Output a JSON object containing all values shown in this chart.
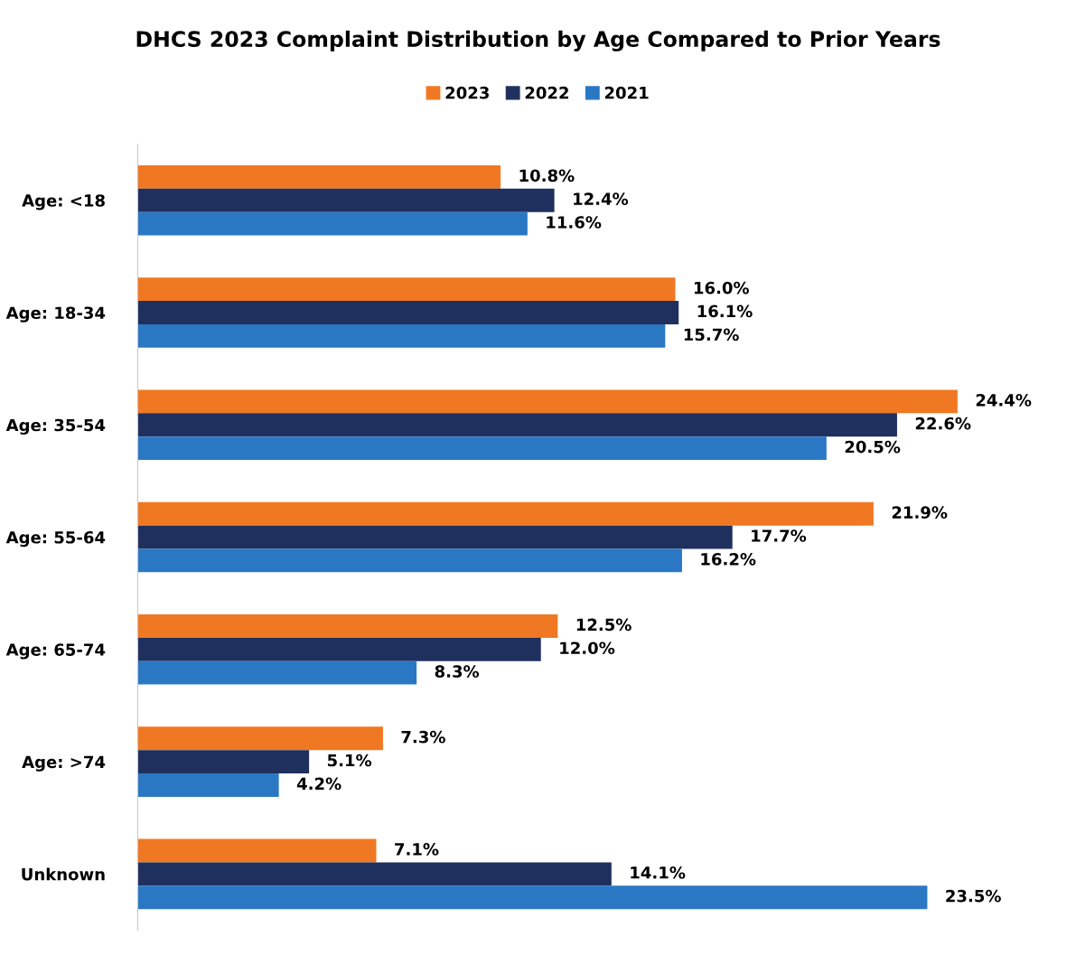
{
  "chart_data": {
    "type": "bar",
    "orientation": "horizontal",
    "title": "DHCS 2023 Complaint Distribution by Age Compared to Prior Years",
    "categories": [
      "Age: <18",
      "Age: 18-34",
      "Age: 35-54",
      "Age: 55-64",
      "Age: 65-74",
      "Age: >74",
      "Unknown"
    ],
    "series": [
      {
        "name": "2023",
        "color": "#f07822",
        "values": [
          10.8,
          16.0,
          24.4,
          21.9,
          12.5,
          7.3,
          7.1
        ],
        "value_labels": [
          "10.8%",
          "16.0%",
          "24.4%",
          "21.9%",
          "12.5%",
          "7.3%",
          "7.1%"
        ]
      },
      {
        "name": "2022",
        "color": "#1f305e",
        "values": [
          12.4,
          16.1,
          22.6,
          17.7,
          12.0,
          5.1,
          14.1
        ],
        "value_labels": [
          "12.4%",
          "16.1%",
          "22.6%",
          "17.7%",
          "12.0%",
          "5.1%",
          "14.1%"
        ]
      },
      {
        "name": "2021",
        "color": "#2a78c4",
        "values": [
          11.6,
          15.7,
          20.5,
          16.2,
          8.3,
          4.2,
          23.5
        ],
        "value_labels": [
          "11.6%",
          "15.7%",
          "20.5%",
          "16.2%",
          "8.3%",
          "4.2%",
          "23.5%"
        ]
      }
    ],
    "legend": "top",
    "grid": false,
    "tick_labels": "y"
  }
}
